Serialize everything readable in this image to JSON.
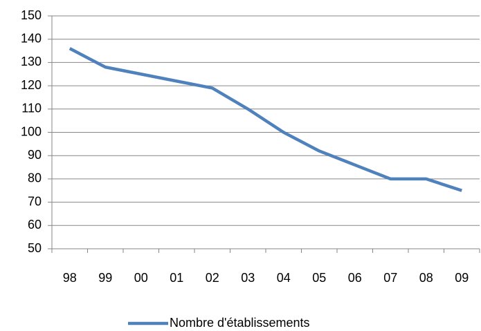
{
  "chart_data": {
    "type": "line",
    "categories": [
      "98",
      "99",
      "00",
      "01",
      "02",
      "03",
      "04",
      "05",
      "06",
      "07",
      "08",
      "09"
    ],
    "series": [
      {
        "name": "Nombre d'établissements",
        "color": "#4f81bd",
        "values": [
          136,
          128,
          125,
          122,
          119,
          110,
          100,
          92,
          86,
          80,
          80,
          75
        ]
      }
    ],
    "ylim": [
      50,
      150
    ],
    "yticks": [
      50,
      60,
      70,
      80,
      90,
      100,
      110,
      120,
      130,
      140,
      150
    ],
    "grid": true,
    "legend": "bottom"
  }
}
